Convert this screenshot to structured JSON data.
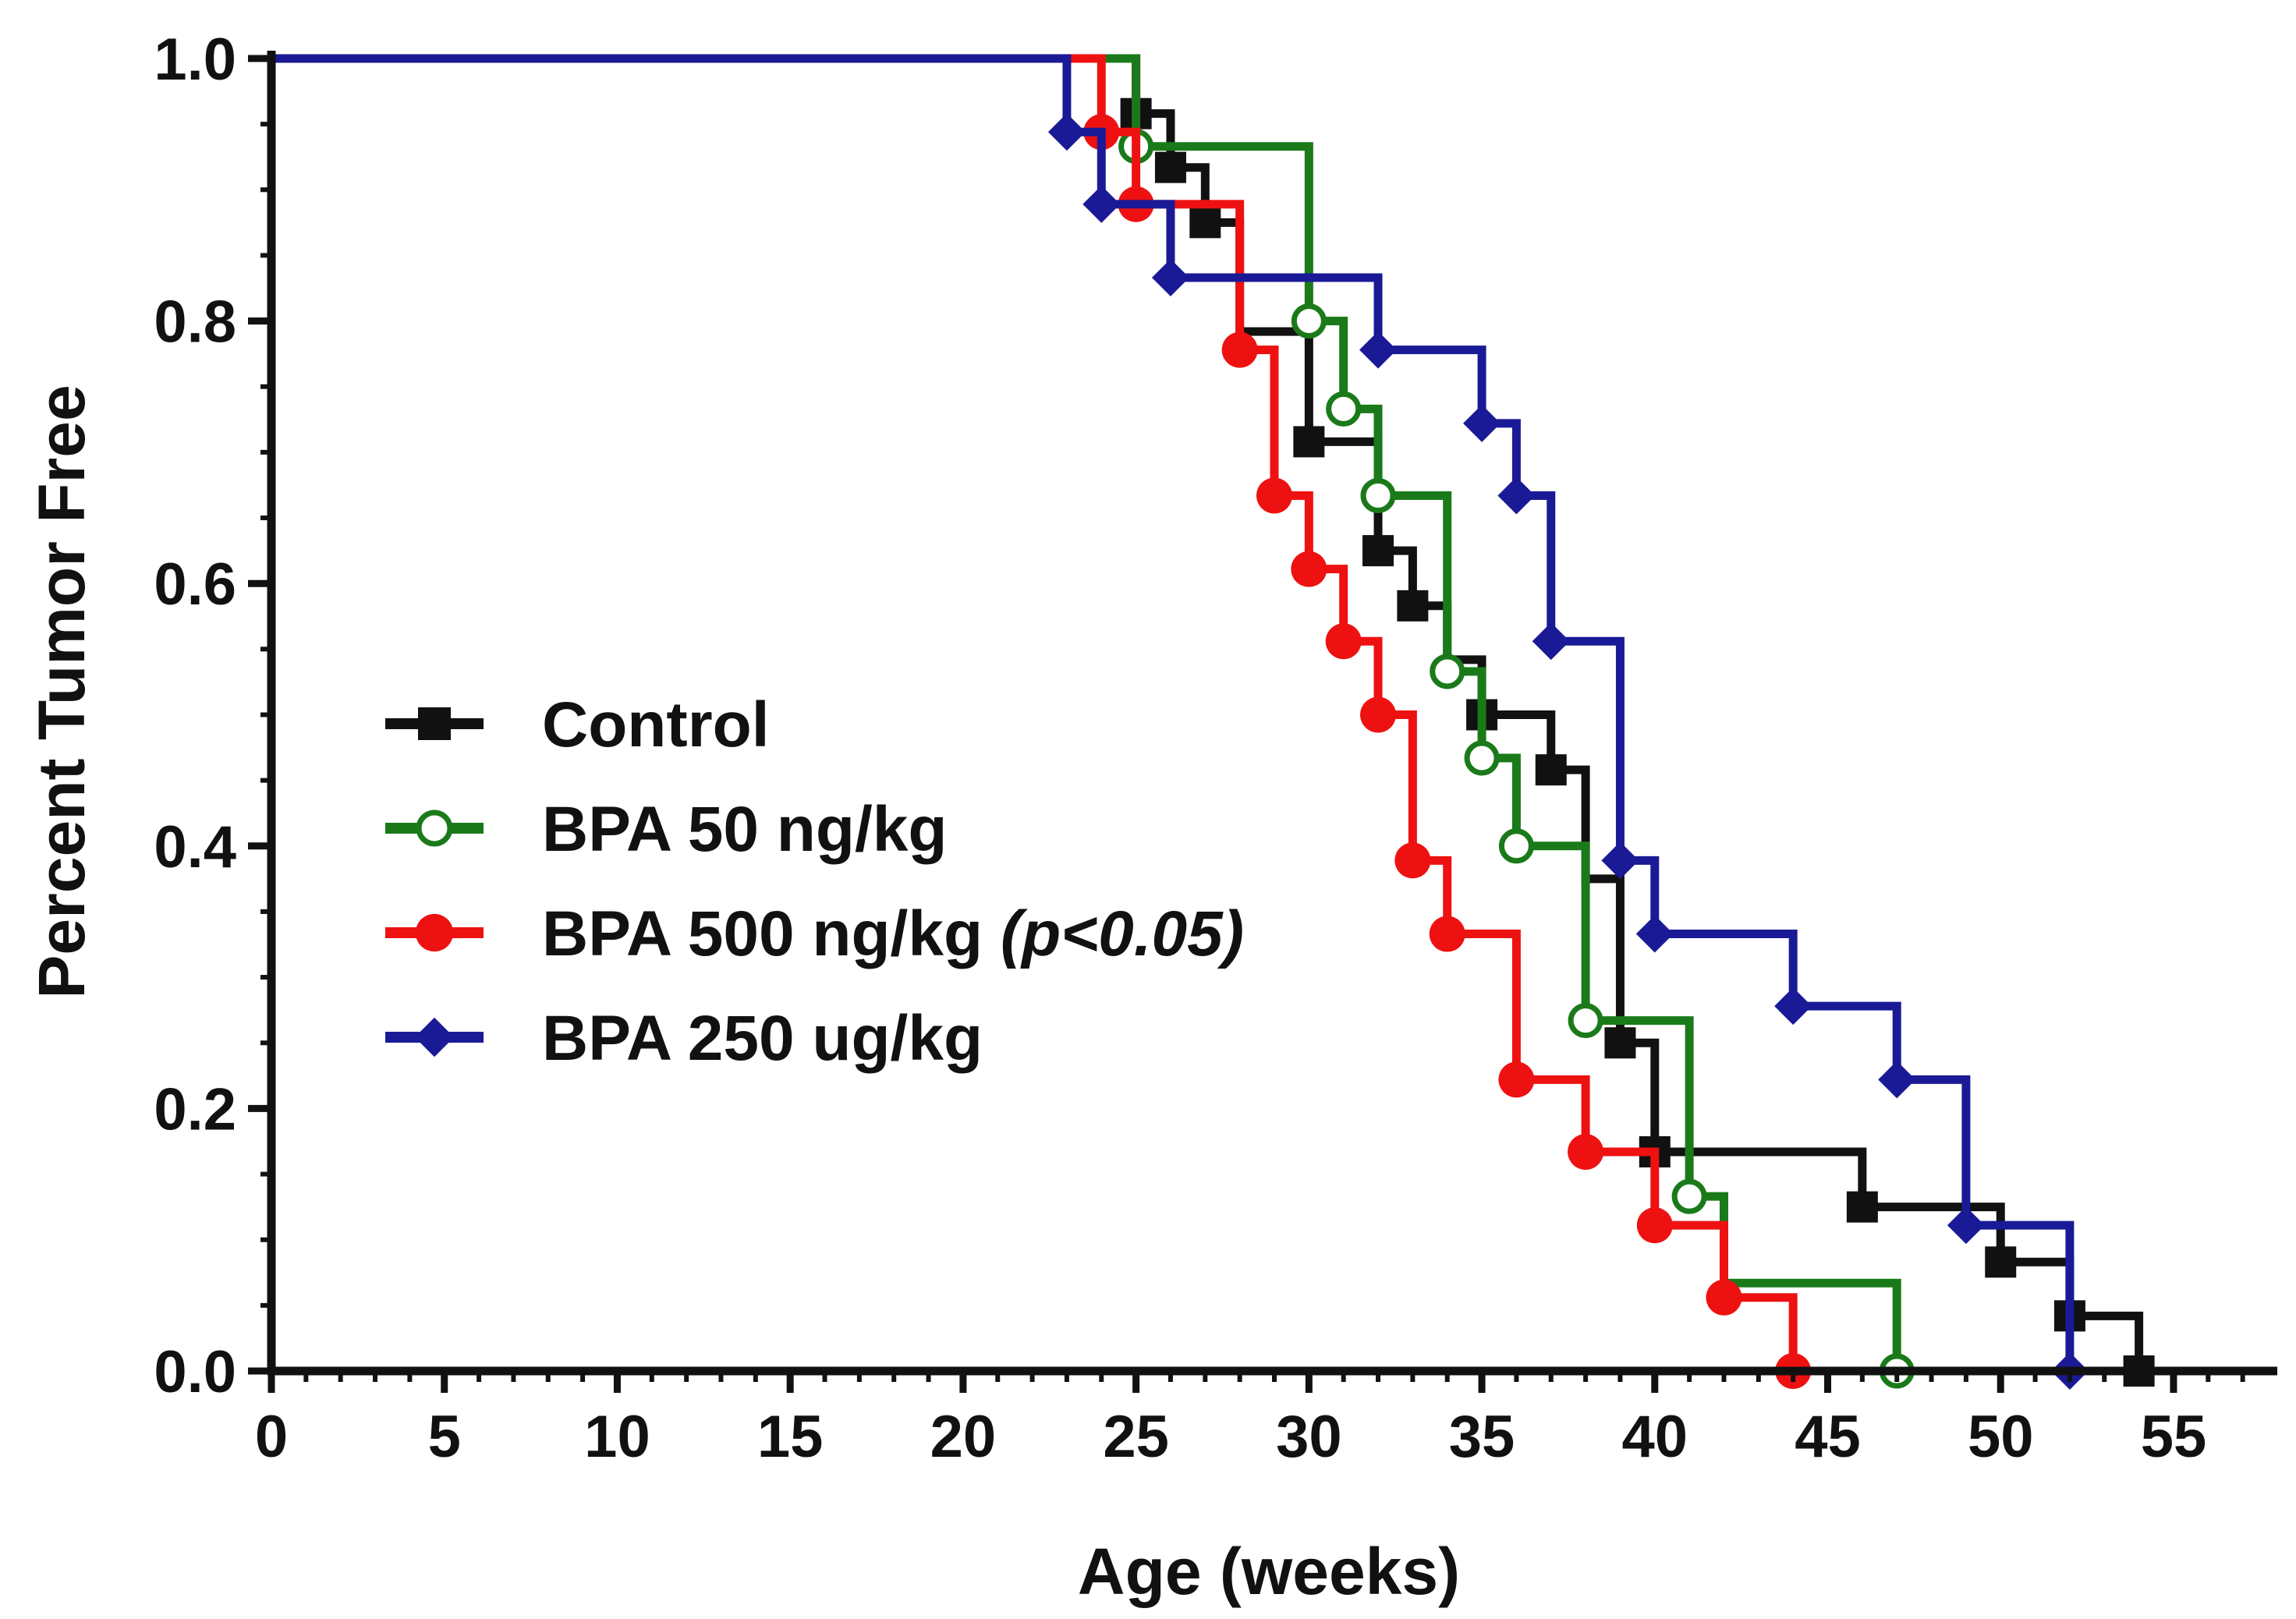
{
  "chart_data": {
    "type": "line",
    "subtype": "kaplan-meier-step",
    "title": "",
    "xlabel": "Age (weeks)",
    "ylabel": "Percent Tumor Free",
    "xlim": [
      0,
      58
    ],
    "ylim": [
      0,
      1.0
    ],
    "xticks": [
      0,
      5,
      10,
      15,
      20,
      25,
      30,
      35,
      40,
      45,
      50,
      55
    ],
    "yticks": [
      0.0,
      0.2,
      0.4,
      0.6,
      0.8,
      1.0
    ],
    "xtick_labels": [
      "0",
      "5",
      "10",
      "15",
      "20",
      "25",
      "30",
      "35",
      "40",
      "45",
      "50",
      "55"
    ],
    "ytick_labels": [
      "0.0",
      "0.2",
      "0.4",
      "0.6",
      "0.8",
      "1.0"
    ],
    "grid": false,
    "legend_position": "center-left",
    "series": [
      {
        "name": "Control",
        "label": "Control",
        "note": "",
        "color": "#111111",
        "marker": "square",
        "marker_fill": "#111111",
        "steps": [
          [
            0,
            1.0
          ],
          [
            25,
            0.958
          ],
          [
            26,
            0.917
          ],
          [
            27,
            0.875
          ],
          [
            28,
            0.792
          ],
          [
            30,
            0.708
          ],
          [
            32,
            0.625
          ],
          [
            33,
            0.583
          ],
          [
            34,
            0.542
          ],
          [
            35,
            0.5
          ],
          [
            37,
            0.458
          ],
          [
            38,
            0.375
          ],
          [
            39,
            0.25
          ],
          [
            40,
            0.167
          ],
          [
            46,
            0.125
          ],
          [
            50,
            0.083
          ],
          [
            52,
            0.042
          ],
          [
            54,
            0.0
          ]
        ],
        "markers": [
          [
            25,
            0.958
          ],
          [
            26,
            0.917
          ],
          [
            27,
            0.875
          ],
          [
            30,
            0.708
          ],
          [
            32,
            0.625
          ],
          [
            33,
            0.583
          ],
          [
            35,
            0.5
          ],
          [
            37,
            0.458
          ],
          [
            39,
            0.25
          ],
          [
            40,
            0.167
          ],
          [
            46,
            0.125
          ],
          [
            50,
            0.083
          ],
          [
            52,
            0.042
          ],
          [
            54,
            0.0
          ]
        ]
      },
      {
        "name": "BPA 50 ng/kg",
        "label": "BPA 50 ng/kg",
        "note": "",
        "color": "#1a7a1a",
        "marker": "circle-open",
        "marker_fill": "#ffffff",
        "steps": [
          [
            0,
            1.0
          ],
          [
            25,
            0.933
          ],
          [
            30,
            0.8
          ],
          [
            31,
            0.733
          ],
          [
            32,
            0.667
          ],
          [
            34,
            0.533
          ],
          [
            35,
            0.467
          ],
          [
            36,
            0.4
          ],
          [
            38,
            0.267
          ],
          [
            41,
            0.133
          ],
          [
            42,
            0.067
          ],
          [
            47,
            0.0
          ]
        ],
        "markers": [
          [
            25,
            0.933
          ],
          [
            30,
            0.8
          ],
          [
            31,
            0.733
          ],
          [
            32,
            0.667
          ],
          [
            34,
            0.533
          ],
          [
            35,
            0.467
          ],
          [
            36,
            0.4
          ],
          [
            38,
            0.267
          ],
          [
            41,
            0.133
          ],
          [
            47,
            0.0
          ]
        ]
      },
      {
        "name": "BPA 500 ng/kg",
        "label": "BPA 500 ng/kg",
        "note": "(p<0.05)",
        "color": "#ee1111",
        "marker": "circle",
        "marker_fill": "#ee1111",
        "steps": [
          [
            0,
            1.0
          ],
          [
            24,
            0.944
          ],
          [
            25,
            0.889
          ],
          [
            28,
            0.778
          ],
          [
            29,
            0.667
          ],
          [
            30,
            0.611
          ],
          [
            31,
            0.556
          ],
          [
            32,
            0.5
          ],
          [
            33,
            0.389
          ],
          [
            34,
            0.333
          ],
          [
            36,
            0.222
          ],
          [
            38,
            0.167
          ],
          [
            40,
            0.111
          ],
          [
            42,
            0.056
          ],
          [
            44,
            0.0
          ]
        ],
        "markers": [
          [
            24,
            0.944
          ],
          [
            25,
            0.889
          ],
          [
            28,
            0.778
          ],
          [
            29,
            0.667
          ],
          [
            30,
            0.611
          ],
          [
            31,
            0.556
          ],
          [
            32,
            0.5
          ],
          [
            33,
            0.389
          ],
          [
            34,
            0.333
          ],
          [
            36,
            0.222
          ],
          [
            38,
            0.167
          ],
          [
            40,
            0.111
          ],
          [
            42,
            0.056
          ],
          [
            44,
            0.0
          ]
        ]
      },
      {
        "name": "BPA 250 ug/kg",
        "label": "BPA 250 ug/kg",
        "note": "",
        "color": "#1a1a96",
        "marker": "diamond",
        "marker_fill": "#1a1a96",
        "steps": [
          [
            0,
            1.0
          ],
          [
            23,
            0.944
          ],
          [
            24,
            0.889
          ],
          [
            26,
            0.833
          ],
          [
            32,
            0.778
          ],
          [
            35,
            0.722
          ],
          [
            36,
            0.667
          ],
          [
            37,
            0.556
          ],
          [
            39,
            0.389
          ],
          [
            40,
            0.333
          ],
          [
            44,
            0.278
          ],
          [
            47,
            0.222
          ],
          [
            49,
            0.111
          ],
          [
            52,
            0.0
          ]
        ],
        "markers": [
          [
            23,
            0.944
          ],
          [
            24,
            0.889
          ],
          [
            26,
            0.833
          ],
          [
            32,
            0.778
          ],
          [
            35,
            0.722
          ],
          [
            36,
            0.667
          ],
          [
            37,
            0.556
          ],
          [
            39,
            0.389
          ],
          [
            40,
            0.333
          ],
          [
            44,
            0.278
          ],
          [
            47,
            0.222
          ],
          [
            49,
            0.111
          ],
          [
            52,
            0.0
          ]
        ]
      }
    ]
  }
}
